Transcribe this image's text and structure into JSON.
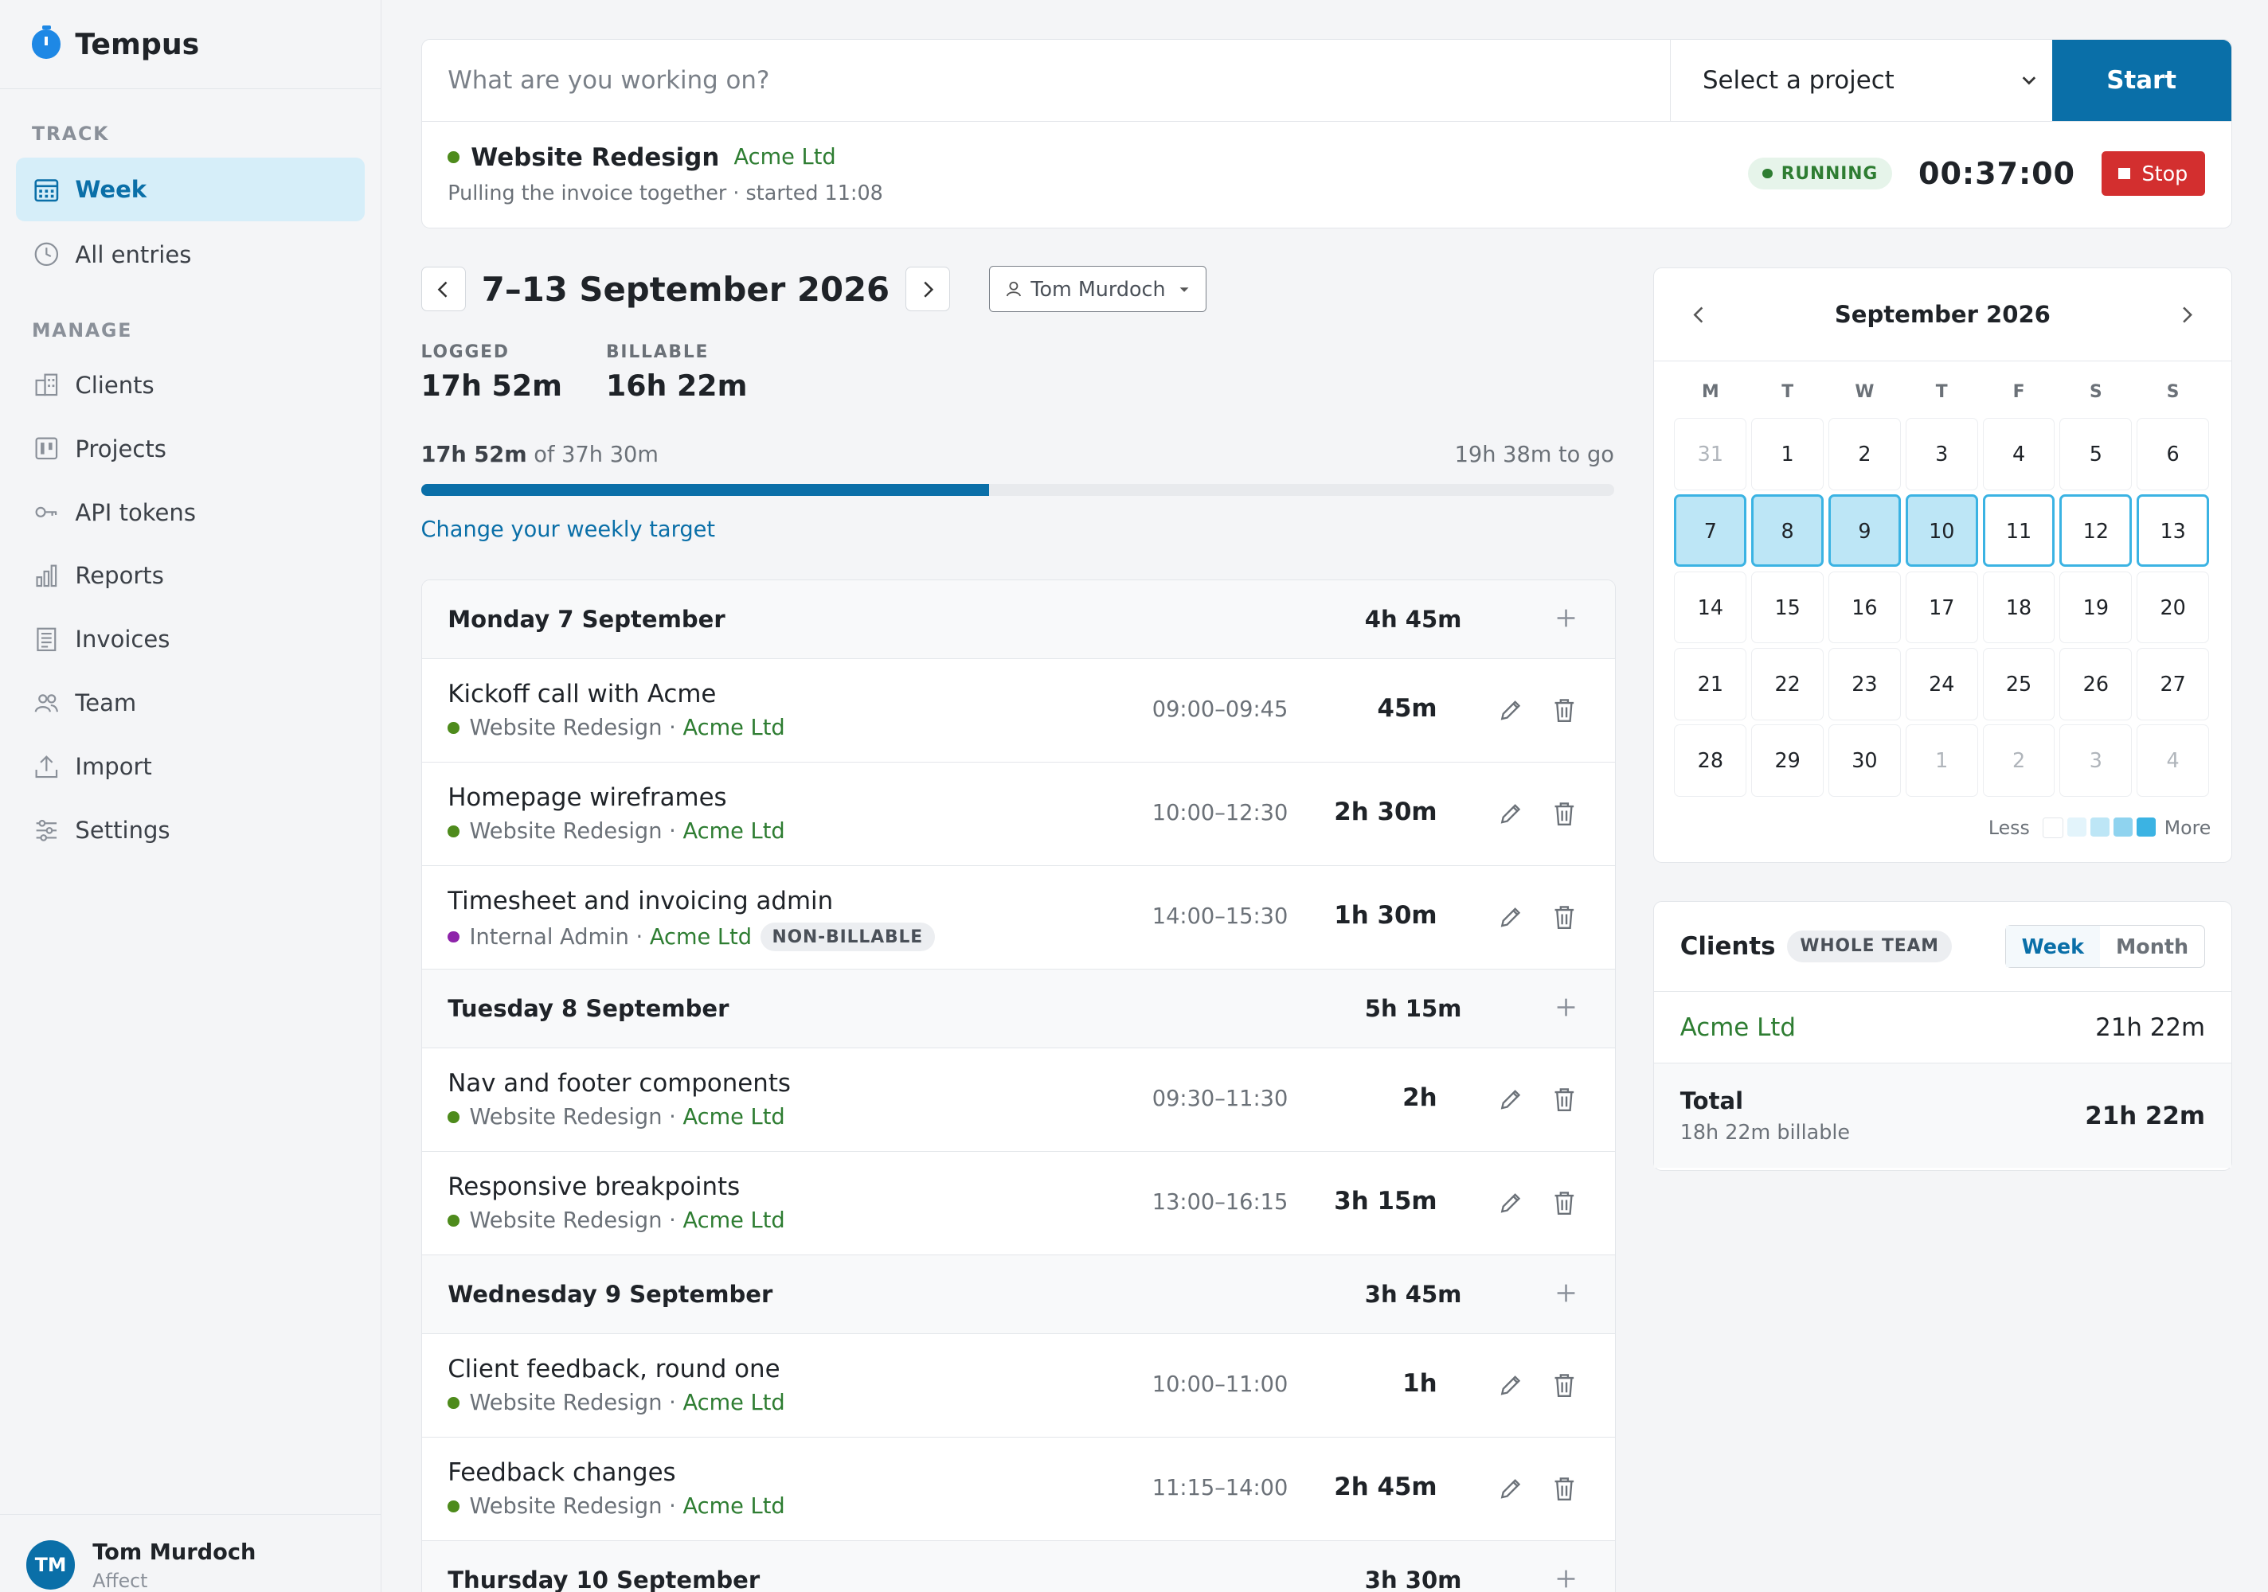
{
  "app": {
    "name": "Tempus"
  },
  "sidebar": {
    "track_label": "TRACK",
    "track_items": [
      {
        "label": "Week",
        "icon": "calendar-icon",
        "active": true
      },
      {
        "label": "All entries",
        "icon": "clock-icon"
      }
    ],
    "manage_label": "MANAGE",
    "manage_items": [
      {
        "label": "Clients",
        "icon": "building-icon"
      },
      {
        "label": "Projects",
        "icon": "kanban-icon"
      },
      {
        "label": "API tokens",
        "icon": "key-icon"
      },
      {
        "label": "Reports",
        "icon": "bar-chart-icon"
      },
      {
        "label": "Invoices",
        "icon": "invoice-icon"
      },
      {
        "label": "Team",
        "icon": "people-icon"
      },
      {
        "label": "Import",
        "icon": "upload-icon"
      },
      {
        "label": "Settings",
        "icon": "sliders-icon"
      }
    ],
    "user": {
      "initials": "TM",
      "name": "Tom Murdoch",
      "org": "Affect"
    }
  },
  "timer": {
    "placeholder": "What are you working on?",
    "project_select": "Select a project",
    "start_label": "Start",
    "running": {
      "project": "Website Redesign",
      "client": "Acme Ltd",
      "description": "Pulling the invoice together · started 11:08",
      "status": "RUNNING",
      "elapsed": "00:37:00",
      "stop_label": "Stop",
      "dot_color": "#4e8b1c"
    }
  },
  "week": {
    "title": "7–13 September 2026",
    "user_filter": "Tom Murdoch",
    "logged_label": "LOGGED",
    "logged": "17h 52m",
    "billable_label": "BILLABLE",
    "billable": "16h 22m",
    "progress_done": "17h 52m",
    "progress_of": "of 37h 30m",
    "progress_remaining": "19h 38m to go",
    "progress_fraction": 0.4764,
    "target_link": "Change your weekly target"
  },
  "days": [
    {
      "name": "Monday 7 September",
      "total": "4h 45m",
      "entries": [
        {
          "desc": "Kickoff call with Acme",
          "project": "Website Redesign",
          "client": "Acme Ltd",
          "range": "09:00–09:45",
          "dur": "45m",
          "dot": "#4e8b1c"
        },
        {
          "desc": "Homepage wireframes",
          "project": "Website Redesign",
          "client": "Acme Ltd",
          "range": "10:00–12:30",
          "dur": "2h 30m",
          "dot": "#4e8b1c"
        },
        {
          "desc": "Timesheet and invoicing admin",
          "project": "Internal Admin",
          "client": "Acme Ltd",
          "range": "14:00–15:30",
          "dur": "1h 30m",
          "dot": "#8e24aa",
          "badge": "NON-BILLABLE"
        }
      ]
    },
    {
      "name": "Tuesday 8 September",
      "total": "5h 15m",
      "entries": [
        {
          "desc": "Nav and footer components",
          "project": "Website Redesign",
          "client": "Acme Ltd",
          "range": "09:30–11:30",
          "dur": "2h",
          "dot": "#4e8b1c"
        },
        {
          "desc": "Responsive breakpoints",
          "project": "Website Redesign",
          "client": "Acme Ltd",
          "range": "13:00–16:15",
          "dur": "3h 15m",
          "dot": "#4e8b1c"
        }
      ]
    },
    {
      "name": "Wednesday 9 September",
      "total": "3h 45m",
      "entries": [
        {
          "desc": "Client feedback, round one",
          "project": "Website Redesign",
          "client": "Acme Ltd",
          "range": "10:00–11:00",
          "dur": "1h",
          "dot": "#4e8b1c"
        },
        {
          "desc": "Feedback changes",
          "project": "Website Redesign",
          "client": "Acme Ltd",
          "range": "11:15–14:00",
          "dur": "2h 45m",
          "dot": "#4e8b1c"
        }
      ]
    },
    {
      "name": "Thursday 10 September",
      "total": "3h 30m",
      "entries": []
    }
  ],
  "calendar": {
    "title": "September 2026",
    "weekdays": [
      "M",
      "T",
      "W",
      "T",
      "F",
      "S",
      "S"
    ],
    "cells": [
      {
        "d": "31",
        "muted": true
      },
      {
        "d": "1"
      },
      {
        "d": "2"
      },
      {
        "d": "3"
      },
      {
        "d": "4"
      },
      {
        "d": "5"
      },
      {
        "d": "6"
      },
      {
        "d": "7",
        "level": 4
      },
      {
        "d": "8",
        "level": 4
      },
      {
        "d": "9",
        "level": 4
      },
      {
        "d": "10",
        "level": 4
      },
      {
        "d": "11",
        "week": true
      },
      {
        "d": "12",
        "today": true
      },
      {
        "d": "13",
        "week": true
      },
      {
        "d": "14"
      },
      {
        "d": "15"
      },
      {
        "d": "16"
      },
      {
        "d": "17"
      },
      {
        "d": "18"
      },
      {
        "d": "19"
      },
      {
        "d": "20"
      },
      {
        "d": "21"
      },
      {
        "d": "22"
      },
      {
        "d": "23"
      },
      {
        "d": "24"
      },
      {
        "d": "25"
      },
      {
        "d": "26"
      },
      {
        "d": "27"
      },
      {
        "d": "28"
      },
      {
        "d": "29"
      },
      {
        "d": "30"
      },
      {
        "d": "1",
        "muted": true
      },
      {
        "d": "2",
        "muted": true
      },
      {
        "d": "3",
        "muted": true
      },
      {
        "d": "4",
        "muted": true
      }
    ],
    "legend_less": "Less",
    "legend_more": "More",
    "legend_colors": [
      "#ffffff",
      "#e3f4fb",
      "#bde6f6",
      "#8fd3ef",
      "#3bb3e3"
    ]
  },
  "clients_panel": {
    "title": "Clients",
    "badge": "WHOLE TEAM",
    "tabs": [
      "Week",
      "Month"
    ],
    "rows": [
      {
        "name": "Acme Ltd",
        "hours": "21h 22m"
      }
    ],
    "total_label": "Total",
    "total_sub": "18h 22m billable",
    "total_hours": "21h 22m"
  },
  "colors": {
    "accent": "#0a6fa8",
    "stop": "#d32f2f",
    "client": "#2e7d32"
  }
}
